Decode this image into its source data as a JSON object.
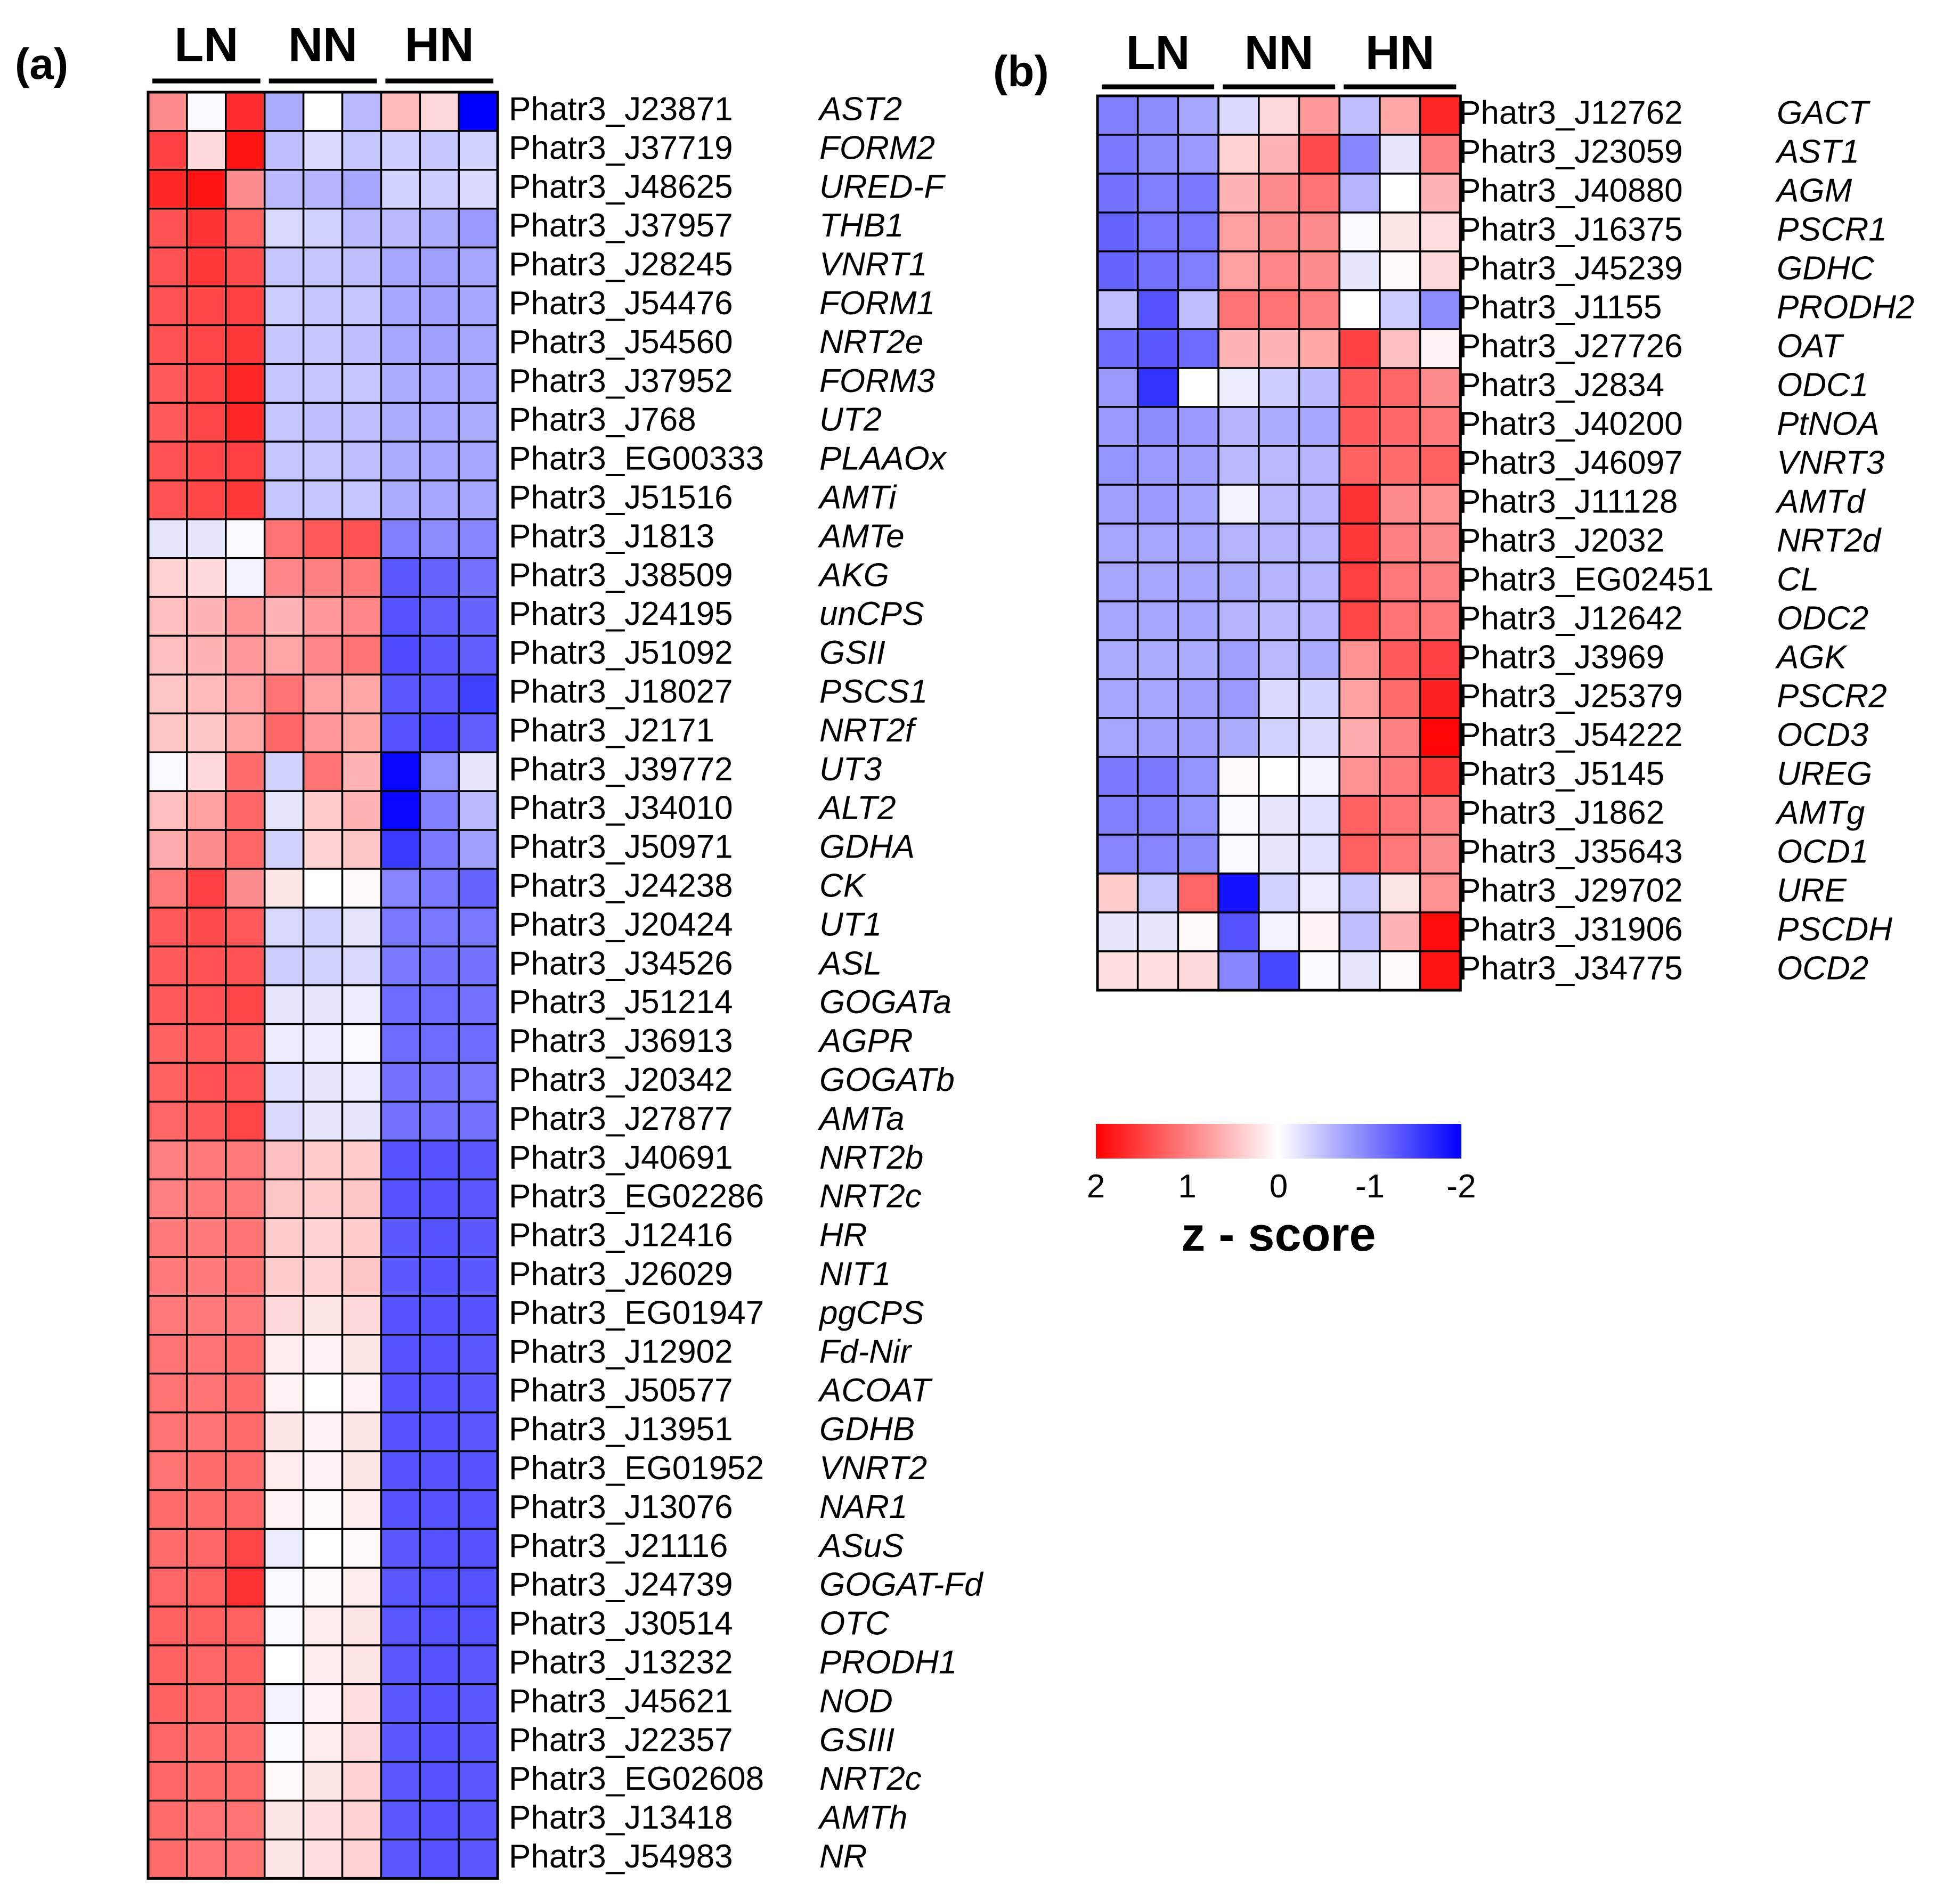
{
  "chart_data": [
    {
      "type": "heatmap",
      "panel_label": "(a)",
      "columns": [
        "LN",
        "LN",
        "LN",
        "NN",
        "NN",
        "NN",
        "HN",
        "HN",
        "HN"
      ],
      "groups": [
        "LN",
        "NN",
        "HN"
      ],
      "rows": [
        {
          "id": "Phatr3_J23871",
          "gene": "AST2",
          "z": [
            0.9,
            -0.05,
            1.65,
            -0.65,
            0.0,
            -0.55,
            0.55,
            0.3,
            -2.0
          ]
        },
        {
          "id": "Phatr3_J37719",
          "gene": "FORM2",
          "z": [
            1.5,
            0.3,
            1.85,
            -0.5,
            -0.3,
            -0.45,
            -0.4,
            -0.45,
            -0.35
          ]
        },
        {
          "id": "Phatr3_J48625",
          "gene": "URED-F",
          "z": [
            1.7,
            1.85,
            0.9,
            -0.55,
            -0.6,
            -0.7,
            -0.35,
            -0.4,
            -0.3
          ]
        },
        {
          "id": "Phatr3_J37957",
          "gene": "THB1",
          "z": [
            1.35,
            1.6,
            1.25,
            -0.3,
            -0.35,
            -0.55,
            -0.55,
            -0.65,
            -0.8
          ]
        },
        {
          "id": "Phatr3_J28245",
          "gene": "VNRT1",
          "z": [
            1.35,
            1.55,
            1.4,
            -0.45,
            -0.45,
            -0.5,
            -0.7,
            -0.75,
            -0.7
          ]
        },
        {
          "id": "Phatr3_J54476",
          "gene": "FORM1",
          "z": [
            1.35,
            1.45,
            1.5,
            -0.4,
            -0.45,
            -0.45,
            -0.7,
            -0.75,
            -0.7
          ]
        },
        {
          "id": "Phatr3_J54560",
          "gene": "NRT2e",
          "z": [
            1.35,
            1.45,
            1.55,
            -0.45,
            -0.45,
            -0.5,
            -0.7,
            -0.75,
            -0.7
          ]
        },
        {
          "id": "Phatr3_J37952",
          "gene": "FORM3",
          "z": [
            1.3,
            1.45,
            1.7,
            -0.45,
            -0.45,
            -0.45,
            -0.65,
            -0.7,
            -0.7
          ]
        },
        {
          "id": "Phatr3_J768",
          "gene": "UT2",
          "z": [
            1.3,
            1.45,
            1.7,
            -0.45,
            -0.5,
            -0.5,
            -0.65,
            -0.7,
            -0.65
          ]
        },
        {
          "id": "Phatr3_EG00333",
          "gene": "PLAAOx",
          "z": [
            1.35,
            1.45,
            1.5,
            -0.45,
            -0.45,
            -0.5,
            -0.65,
            -0.7,
            -0.7
          ]
        },
        {
          "id": "Phatr3_J51516",
          "gene": "AMTi",
          "z": [
            1.35,
            1.45,
            1.55,
            -0.45,
            -0.45,
            -0.45,
            -0.65,
            -0.7,
            -0.7
          ]
        },
        {
          "id": "Phatr3_J1813",
          "gene": "AMTe",
          "z": [
            -0.2,
            -0.2,
            -0.05,
            1.1,
            1.3,
            1.35,
            -1.0,
            -0.9,
            -0.95
          ]
        },
        {
          "id": "Phatr3_J38509",
          "gene": "AKG",
          "z": [
            0.35,
            0.3,
            -0.1,
            0.95,
            1.0,
            1.05,
            -1.3,
            -1.2,
            -1.1
          ]
        },
        {
          "id": "Phatr3_J24195",
          "gene": "unCPS",
          "z": [
            0.5,
            0.6,
            0.85,
            0.6,
            0.8,
            0.95,
            -1.35,
            -1.25,
            -1.2
          ]
        },
        {
          "id": "Phatr3_J51092",
          "gene": "GSII",
          "z": [
            0.5,
            0.6,
            0.8,
            0.7,
            0.95,
            1.1,
            -1.4,
            -1.3,
            -1.25
          ]
        },
        {
          "id": "Phatr3_J18027",
          "gene": "PSCS1",
          "z": [
            0.45,
            0.55,
            0.75,
            1.1,
            0.75,
            0.7,
            -1.3,
            -1.3,
            -1.5
          ]
        },
        {
          "id": "Phatr3_J2171",
          "gene": "NRT2f",
          "z": [
            0.45,
            0.45,
            0.7,
            1.2,
            0.8,
            0.7,
            -1.35,
            -1.4,
            -1.25
          ]
        },
        {
          "id": "Phatr3_J39772",
          "gene": "UT3",
          "z": [
            -0.05,
            0.3,
            1.15,
            -0.35,
            1.1,
            0.6,
            -1.95,
            -0.85,
            -0.2
          ]
        },
        {
          "id": "Phatr3_J34010",
          "gene": "ALT2",
          "z": [
            0.5,
            0.75,
            1.2,
            -0.2,
            0.4,
            0.6,
            -1.95,
            -1.0,
            -0.55
          ]
        },
        {
          "id": "Phatr3_J50971",
          "gene": "GDHA",
          "z": [
            0.65,
            0.9,
            1.2,
            -0.35,
            0.35,
            0.45,
            -1.55,
            -1.05,
            -0.75
          ]
        },
        {
          "id": "Phatr3_J24238",
          "gene": "CK",
          "z": [
            1.05,
            1.5,
            0.9,
            0.2,
            0.0,
            0.05,
            -0.95,
            -1.05,
            -1.2
          ]
        },
        {
          "id": "Phatr3_J20424",
          "gene": "UT1",
          "z": [
            1.3,
            1.4,
            1.3,
            -0.3,
            -0.35,
            -0.2,
            -1.05,
            -1.05,
            -1.05
          ]
        },
        {
          "id": "Phatr3_J34526",
          "gene": "ASL",
          "z": [
            1.3,
            1.35,
            1.35,
            -0.4,
            -0.35,
            -0.3,
            -1.05,
            -1.1,
            -1.1
          ]
        },
        {
          "id": "Phatr3_J51214",
          "gene": "GOGATa",
          "z": [
            1.3,
            1.35,
            1.45,
            -0.2,
            -0.2,
            -0.15,
            -1.15,
            -1.15,
            -1.1
          ]
        },
        {
          "id": "Phatr3_J36913",
          "gene": "AGPR",
          "z": [
            1.25,
            1.3,
            1.3,
            -0.15,
            -0.15,
            -0.05,
            -1.15,
            -1.15,
            -1.15
          ]
        },
        {
          "id": "Phatr3_J20342",
          "gene": "GOGATb",
          "z": [
            1.25,
            1.35,
            1.35,
            -0.25,
            -0.2,
            -0.15,
            -1.1,
            -1.1,
            -1.05
          ]
        },
        {
          "id": "Phatr3_J27877",
          "gene": "AMTa",
          "z": [
            1.2,
            1.3,
            1.45,
            -0.3,
            -0.2,
            -0.2,
            -1.1,
            -1.1,
            -1.1
          ]
        },
        {
          "id": "Phatr3_J40691",
          "gene": "NRT2b",
          "z": [
            1.0,
            1.05,
            1.05,
            0.5,
            0.4,
            0.4,
            -1.35,
            -1.35,
            -1.3
          ]
        },
        {
          "id": "Phatr3_EG02286",
          "gene": "NRT2c",
          "z": [
            1.0,
            1.05,
            1.05,
            0.45,
            0.4,
            0.45,
            -1.35,
            -1.35,
            -1.3
          ]
        },
        {
          "id": "Phatr3_J12416",
          "gene": "HR",
          "z": [
            1.05,
            1.05,
            1.1,
            0.4,
            0.35,
            0.4,
            -1.3,
            -1.35,
            -1.3
          ]
        },
        {
          "id": "Phatr3_J26029",
          "gene": "NIT1",
          "z": [
            1.05,
            1.05,
            1.1,
            0.4,
            0.35,
            0.45,
            -1.3,
            -1.35,
            -1.3
          ]
        },
        {
          "id": "Phatr3_EG01947",
          "gene": "pgCPS",
          "z": [
            1.05,
            1.05,
            1.05,
            0.3,
            0.2,
            0.3,
            -1.35,
            -1.35,
            -1.35
          ]
        },
        {
          "id": "Phatr3_J12902",
          "gene": "Fd-Nir",
          "z": [
            1.1,
            1.1,
            1.15,
            0.15,
            0.1,
            0.2,
            -1.35,
            -1.35,
            -1.3
          ]
        },
        {
          "id": "Phatr3_J50577",
          "gene": "ACOAT",
          "z": [
            1.1,
            1.1,
            1.15,
            0.1,
            0.0,
            0.1,
            -1.35,
            -1.35,
            -1.3
          ]
        },
        {
          "id": "Phatr3_J13951",
          "gene": "GDHB",
          "z": [
            1.1,
            1.1,
            1.15,
            0.2,
            0.1,
            0.2,
            -1.35,
            -1.35,
            -1.3
          ]
        },
        {
          "id": "Phatr3_EG01952",
          "gene": "VNRT2",
          "z": [
            1.1,
            1.15,
            1.15,
            0.15,
            0.1,
            0.2,
            -1.35,
            -1.35,
            -1.35
          ]
        },
        {
          "id": "Phatr3_J13076",
          "gene": "NAR1",
          "z": [
            1.15,
            1.15,
            1.2,
            0.1,
            0.05,
            0.15,
            -1.35,
            -1.35,
            -1.35
          ]
        },
        {
          "id": "Phatr3_J21116",
          "gene": "ASuS",
          "z": [
            1.15,
            1.2,
            1.45,
            -0.15,
            0.0,
            0.05,
            -1.3,
            -1.35,
            -1.35
          ]
        },
        {
          "id": "Phatr3_J24739",
          "gene": "GOGAT-Fd",
          "z": [
            1.2,
            1.25,
            1.6,
            -0.05,
            0.05,
            0.15,
            -1.3,
            -1.35,
            -1.35
          ]
        },
        {
          "id": "Phatr3_J30514",
          "gene": "OTC",
          "z": [
            1.25,
            1.25,
            1.25,
            -0.05,
            0.15,
            0.2,
            -1.3,
            -1.35,
            -1.35
          ]
        },
        {
          "id": "Phatr3_J13232",
          "gene": "PRODH1",
          "z": [
            1.25,
            1.2,
            1.25,
            0.0,
            0.15,
            0.2,
            -1.3,
            -1.35,
            -1.3
          ]
        },
        {
          "id": "Phatr3_J45621",
          "gene": "NOD",
          "z": [
            1.25,
            1.2,
            1.2,
            -0.1,
            0.1,
            0.25,
            -1.3,
            -1.35,
            -1.3
          ]
        },
        {
          "id": "Phatr3_J22357",
          "gene": "GSIII",
          "z": [
            1.2,
            1.15,
            1.15,
            -0.05,
            0.15,
            0.3,
            -1.3,
            -1.35,
            -1.3
          ]
        },
        {
          "id": "Phatr3_EG02608",
          "gene": "NRT2c",
          "z": [
            1.2,
            1.15,
            1.15,
            0.05,
            0.2,
            0.35,
            -1.3,
            -1.35,
            -1.3
          ]
        },
        {
          "id": "Phatr3_J13418",
          "gene": "AMTh",
          "z": [
            1.15,
            1.1,
            1.1,
            0.2,
            0.25,
            0.35,
            -1.3,
            -1.35,
            -1.3
          ]
        },
        {
          "id": "Phatr3_J54983",
          "gene": "NR",
          "z": [
            1.15,
            1.1,
            1.1,
            0.2,
            0.25,
            0.35,
            -1.3,
            -1.35,
            -1.3
          ]
        }
      ]
    },
    {
      "type": "heatmap",
      "panel_label": "(b)",
      "columns": [
        "LN",
        "LN",
        "LN",
        "NN",
        "NN",
        "NN",
        "HN",
        "HN",
        "HN"
      ],
      "groups": [
        "LN",
        "NN",
        "HN"
      ],
      "rows": [
        {
          "id": "Phatr3_J12762",
          "gene": "GACT",
          "z": [
            -1.0,
            -0.9,
            -0.7,
            -0.3,
            0.3,
            0.8,
            -0.5,
            0.7,
            1.7
          ]
        },
        {
          "id": "Phatr3_J23059",
          "gene": "AST1",
          "z": [
            -1.05,
            -0.9,
            -0.8,
            0.35,
            0.6,
            1.4,
            -0.95,
            -0.2,
            1.0
          ]
        },
        {
          "id": "Phatr3_J40880",
          "gene": "AGM",
          "z": [
            -1.1,
            -1.0,
            -1.05,
            0.6,
            0.9,
            1.1,
            -0.6,
            0.0,
            0.6
          ]
        },
        {
          "id": "Phatr3_J16375",
          "gene": "PSCR1",
          "z": [
            -1.2,
            -1.05,
            -1.05,
            0.75,
            0.9,
            0.9,
            -0.05,
            0.2,
            0.25
          ]
        },
        {
          "id": "Phatr3_J45239",
          "gene": "GDHC",
          "z": [
            -1.2,
            -1.1,
            -1.0,
            0.75,
            0.95,
            0.9,
            -0.2,
            0.05,
            0.3
          ]
        },
        {
          "id": "Phatr3_J1155",
          "gene": "PRODH2",
          "z": [
            -0.5,
            -1.35,
            -0.5,
            1.1,
            1.1,
            1.0,
            0.0,
            -0.4,
            -0.9
          ]
        },
        {
          "id": "Phatr3_J27726",
          "gene": "OAT",
          "z": [
            -1.15,
            -1.3,
            -1.15,
            0.6,
            0.6,
            0.7,
            1.5,
            0.5,
            0.1
          ]
        },
        {
          "id": "Phatr3_J2834",
          "gene": "ODC1",
          "z": [
            -0.8,
            -1.6,
            0.0,
            -0.15,
            -0.4,
            -0.55,
            1.3,
            1.2,
            0.9
          ]
        },
        {
          "id": "Phatr3_J40200",
          "gene": "PtNOA",
          "z": [
            -0.8,
            -0.9,
            -0.8,
            -0.6,
            -0.65,
            -0.7,
            1.3,
            1.2,
            1.05
          ]
        },
        {
          "id": "Phatr3_J46097",
          "gene": "VNRT3",
          "z": [
            -0.85,
            -0.8,
            -0.75,
            -0.55,
            -0.55,
            -0.6,
            1.25,
            1.15,
            1.25
          ]
        },
        {
          "id": "Phatr3_J11128",
          "gene": "AMTd",
          "z": [
            -0.75,
            -0.8,
            -0.7,
            -0.1,
            -0.55,
            -0.6,
            1.6,
            0.9,
            0.85
          ]
        },
        {
          "id": "Phatr3_J2032",
          "gene": "NRT2d",
          "z": [
            -0.7,
            -0.7,
            -0.7,
            -0.6,
            -0.6,
            -0.6,
            1.55,
            1.0,
            0.9
          ]
        },
        {
          "id": "Phatr3_EG02451",
          "gene": "CL",
          "z": [
            -0.7,
            -0.7,
            -0.7,
            -0.65,
            -0.6,
            -0.6,
            1.5,
            1.05,
            1.0
          ]
        },
        {
          "id": "Phatr3_J12642",
          "gene": "ODC2",
          "z": [
            -0.7,
            -0.7,
            -0.7,
            -0.6,
            -0.55,
            -0.6,
            1.45,
            1.1,
            1.05
          ]
        },
        {
          "id": "Phatr3_J3969",
          "gene": "AGK",
          "z": [
            -0.65,
            -0.65,
            -0.65,
            -0.75,
            -0.55,
            -0.65,
            0.85,
            1.3,
            1.5
          ]
        },
        {
          "id": "Phatr3_J25379",
          "gene": "PSCR2",
          "z": [
            -0.7,
            -0.7,
            -0.75,
            -0.8,
            -0.3,
            -0.35,
            0.75,
            1.15,
            1.75
          ]
        },
        {
          "id": "Phatr3_J54222",
          "gene": "OCD3",
          "z": [
            -0.7,
            -0.75,
            -0.75,
            -0.65,
            -0.35,
            -0.3,
            0.65,
            1.0,
            1.95
          ]
        },
        {
          "id": "Phatr3_J5145",
          "gene": "UREG",
          "z": [
            -1.05,
            -1.05,
            -0.85,
            0.05,
            0.0,
            -0.1,
            0.85,
            1.05,
            1.55
          ]
        },
        {
          "id": "Phatr3_J1862",
          "gene": "AMTg",
          "z": [
            -1.0,
            -1.0,
            -0.85,
            -0.05,
            -0.2,
            -0.25,
            1.25,
            1.1,
            1.0
          ]
        },
        {
          "id": "Phatr3_J35643",
          "gene": "OCD1",
          "z": [
            -0.95,
            -0.95,
            -0.9,
            -0.05,
            -0.2,
            -0.25,
            1.25,
            1.05,
            0.9
          ]
        },
        {
          "id": "Phatr3_J29702",
          "gene": "URE",
          "z": [
            0.4,
            -0.45,
            1.2,
            -1.85,
            -0.35,
            -0.15,
            -0.45,
            0.2,
            0.85
          ]
        },
        {
          "id": "Phatr3_J31906",
          "gene": "PSCDH",
          "z": [
            -0.2,
            -0.2,
            0.05,
            -1.35,
            -0.1,
            0.1,
            -0.5,
            0.6,
            1.9
          ]
        },
        {
          "id": "Phatr3_J34775",
          "gene": "OCD2",
          "z": [
            0.25,
            0.25,
            0.3,
            -0.95,
            -1.45,
            -0.05,
            -0.2,
            0.05,
            1.85
          ]
        }
      ]
    }
  ],
  "colorbar": {
    "title": "z - score",
    "range": [
      2,
      -2
    ],
    "tick_values": [
      2,
      1,
      0,
      -1,
      -2
    ],
    "tick_labels": [
      "2",
      "1",
      "0",
      "-1",
      "-2"
    ],
    "color_high": "#ff0000",
    "color_mid": "#ffffff",
    "color_low": "#0000ff"
  }
}
